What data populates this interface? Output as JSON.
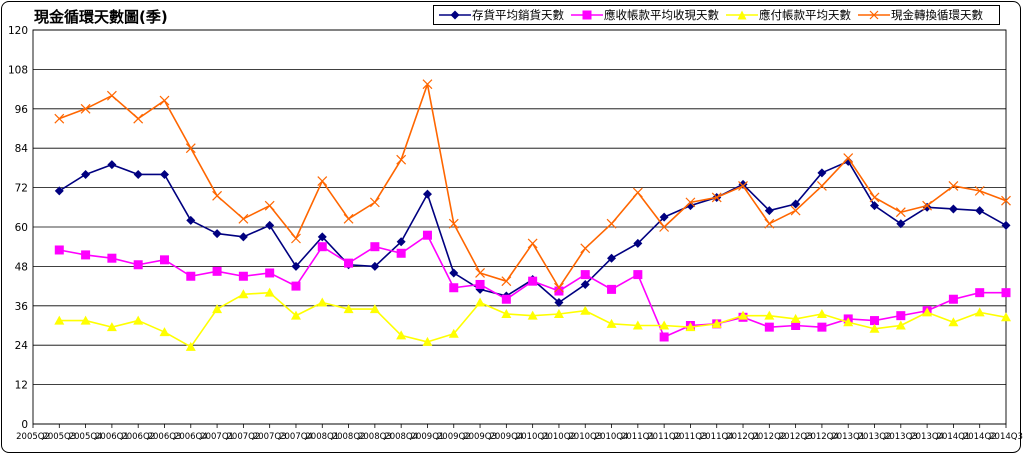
{
  "chart_data": {
    "type": "line",
    "title": "現金循環天數圖(季)",
    "ylim": [
      0,
      120
    ],
    "yticks": [
      0,
      12,
      24,
      36,
      48,
      60,
      72,
      84,
      96,
      108,
      120
    ],
    "grid": true,
    "legend_position": "top-right",
    "x": [
      "2005Q2",
      "2005Q3",
      "2005Q4",
      "2006Q1",
      "2006Q2",
      "2006Q3",
      "2006Q4",
      "2007Q1",
      "2007Q2",
      "2007Q3",
      "2007Q4",
      "2008Q1",
      "2008Q2",
      "2008Q3",
      "2008Q4",
      "2009Q1",
      "2009Q2",
      "2009Q3",
      "2009Q4",
      "2010Q1",
      "2010Q2",
      "2010Q3",
      "2010Q4",
      "2011Q1",
      "2011Q2",
      "2011Q3",
      "2011Q4",
      "2012Q1",
      "2012Q2",
      "2012Q3",
      "2012Q4",
      "2013Q1",
      "2013Q2",
      "2013Q3",
      "2013Q4",
      "2014Q1",
      "2014Q2",
      "2014Q3"
    ],
    "series": [
      {
        "name": "存貨平均銷貨天數",
        "color": "#000080",
        "marker": "diamond",
        "values": [
          null,
          71,
          76,
          79,
          76,
          76,
          62,
          58,
          57,
          60.5,
          48,
          57,
          48.5,
          48,
          55.5,
          70,
          46,
          41,
          39,
          44,
          37,
          42.5,
          50.5,
          55,
          63,
          66.5,
          69,
          73,
          65,
          67,
          76.5,
          80,
          66.5,
          61,
          66,
          65.5,
          65,
          60.5
        ]
      },
      {
        "name": "應收帳款平均收現天數",
        "color": "#ff00ff",
        "marker": "square",
        "values": [
          null,
          53,
          51.5,
          50.5,
          48.5,
          50,
          45,
          46.5,
          45,
          46,
          42,
          54,
          49,
          54,
          52,
          57.5,
          41.5,
          42.5,
          38,
          43.5,
          40.5,
          45.5,
          41,
          45.5,
          26.5,
          30,
          30.5,
          32.5,
          29.5,
          30,
          29.5,
          32,
          31.5,
          33,
          34.5,
          38,
          40,
          40
        ]
      },
      {
        "name": "應付帳款平均天數",
        "color": "#ffff00",
        "marker": "triangle",
        "values": [
          null,
          31.5,
          31.5,
          29.5,
          31.5,
          28,
          23.5,
          35,
          39.5,
          40,
          33,
          37,
          35,
          35,
          27,
          25,
          27.5,
          37,
          33.5,
          33,
          33.5,
          34.5,
          30.5,
          30,
          30,
          29.5,
          30.5,
          33,
          33,
          32,
          33.5,
          31,
          29,
          30,
          34,
          31,
          34,
          32.5
        ]
      },
      {
        "name": "現金轉換循環天數",
        "color": "#ff6600",
        "marker": "x",
        "values": [
          null,
          93,
          96,
          100,
          93,
          98.5,
          84,
          69.5,
          62.5,
          66.5,
          56.5,
          74,
          62.5,
          67.5,
          80.5,
          103.5,
          61,
          46,
          43.5,
          55,
          41.5,
          53.5,
          61,
          70.5,
          60,
          67.5,
          69,
          72.5,
          61,
          65,
          72.5,
          81,
          69,
          64.5,
          66.5,
          72.5,
          71,
          68
        ]
      }
    ]
  }
}
